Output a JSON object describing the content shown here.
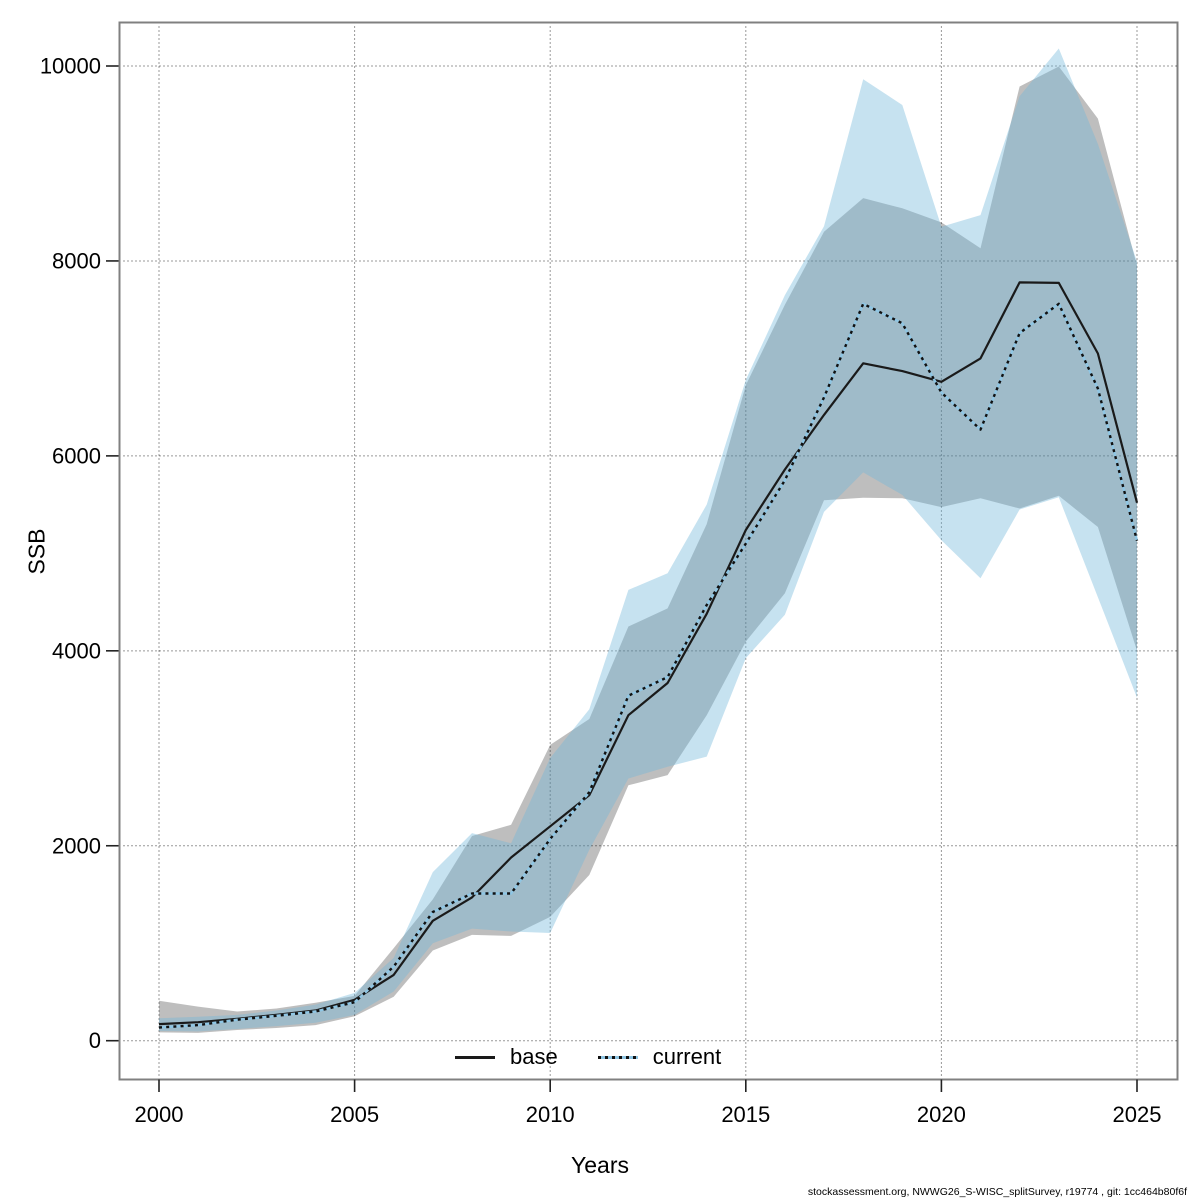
{
  "labels": {
    "ylabel": "SSB",
    "xlabel": "Years"
  },
  "legend": {
    "base": "base",
    "current": "current"
  },
  "footer": {
    "text": "stockassessment.org, NWWG26_S-WISC_splitSurvey, r19774 , git: 1cc464b80f6f"
  },
  "colors": {
    "background": "#ffffff",
    "plot_border": "#808080",
    "grid": "#333333",
    "base_line": "#1a1a1a",
    "base_band": "#000000",
    "base_band_opacity": 0.255,
    "current_line_dots": "#111111",
    "current_line_under": "#8fc6e4",
    "current_band": "#71b7da",
    "current_band_opacity": 0.4,
    "text": "#000000"
  },
  "chart_data": {
    "type": "line",
    "title": "",
    "xlabel": "Years",
    "ylabel": "SSB",
    "grid": true,
    "legend_position": "bottom-center",
    "x_ticks": [
      2000,
      2005,
      2010,
      2015,
      2020,
      2025
    ],
    "y_ticks": [
      0,
      2000,
      4000,
      6000,
      8000,
      10000
    ],
    "xlim": [
      1999,
      2026.1
    ],
    "ylim": [
      -400,
      10450
    ],
    "x": [
      2000,
      2001,
      2002,
      2003,
      2004,
      2005,
      2006,
      2007,
      2008,
      2009,
      2010,
      2011,
      2012,
      2013,
      2014,
      2015,
      2016,
      2017,
      2018,
      2019,
      2020,
      2021,
      2022,
      2023,
      2024,
      2025
    ],
    "series": [
      {
        "name": "base",
        "style": "solid",
        "values": [
          170,
          190,
          225,
          265,
          310,
          420,
          675,
          1230,
          1470,
          1880,
          2200,
          2520,
          3340,
          3670,
          4380,
          5240,
          5860,
          6420,
          6950,
          6870,
          6760,
          7000,
          7780,
          7775,
          7050,
          5520
        ],
        "ci_lo": [
          85,
          80,
          110,
          130,
          160,
          250,
          450,
          925,
          1085,
          1075,
          1270,
          1700,
          2620,
          2725,
          3340,
          4095,
          4590,
          5545,
          5570,
          5565,
          5475,
          5565,
          5460,
          5590,
          5270,
          4000
        ],
        "ci_hi": [
          410,
          350,
          300,
          330,
          390,
          460,
          950,
          1450,
          2100,
          2215,
          3035,
          3300,
          4250,
          4435,
          5300,
          6725,
          7550,
          8300,
          8645,
          8540,
          8395,
          8130,
          9790,
          9995,
          9460,
          7950
        ]
      },
      {
        "name": "current",
        "style": "dotted",
        "values": [
          135,
          160,
          215,
          255,
          300,
          395,
          760,
          1320,
          1510,
          1510,
          2070,
          2550,
          3540,
          3730,
          4470,
          5100,
          5750,
          6600,
          7560,
          7360,
          6650,
          6270,
          7260,
          7560,
          6690,
          5130
        ],
        "ci_lo": [
          100,
          95,
          120,
          150,
          185,
          265,
          505,
          1000,
          1150,
          1120,
          1105,
          1960,
          2690,
          2810,
          2915,
          3925,
          4370,
          5425,
          5830,
          5600,
          5135,
          4745,
          5450,
          5575,
          4550,
          3520
        ],
        "ci_hi": [
          230,
          245,
          265,
          310,
          370,
          490,
          850,
          1730,
          2130,
          2025,
          2900,
          3400,
          4625,
          4795,
          5500,
          6780,
          7650,
          8355,
          9865,
          9600,
          8350,
          8470,
          9690,
          10180,
          9200,
          7990
        ]
      }
    ]
  }
}
